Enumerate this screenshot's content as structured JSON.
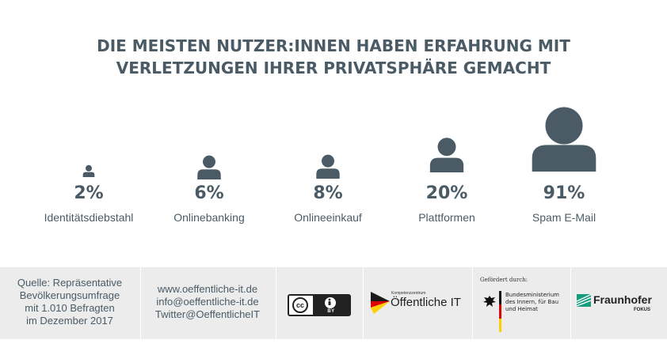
{
  "title": {
    "line1": "DIE MEISTEN NUTZER:INNEN HABEN ERFAHRUNG MIT",
    "line2": "VERLETZUNGEN IHRER PRIVATSPHÄRE GEMACHT"
  },
  "stats": [
    {
      "value": "2%",
      "label": "Identitätsdiebstahl",
      "percent": 2
    },
    {
      "value": "6%",
      "label": "Onlinebanking",
      "percent": 6
    },
    {
      "value": "8%",
      "label": "Onlineeinkauf",
      "percent": 8
    },
    {
      "value": "20%",
      "label": "Plattformen",
      "percent": 20
    },
    {
      "value": "91%",
      "label": "Spam E-Mail",
      "percent": 91
    }
  ],
  "footer": {
    "source": [
      "Quelle: Repräsentative",
      "Bevölkerungsumfrage",
      "mit 1.010 Befragten",
      "im Dezember 2017"
    ],
    "contact": [
      "www.oeffentliche-it.de",
      "info@oeffentliche-it.de",
      "Twitter@OeffentlicheIT"
    ],
    "license": {
      "cc": "cc",
      "by": "BY"
    },
    "kompetenz": {
      "small": "Kompetenzzentrum",
      "big": "Öffentliche IT"
    },
    "funded": {
      "label": "Gefördert durch:",
      "ministry": [
        "Bundesministerium",
        "des Innern, für Bau",
        "und Heimat"
      ]
    },
    "fraunhofer": {
      "name": "Fraunhofer",
      "sub": "FOKUS"
    }
  },
  "colors": {
    "icon": "#4a5b66",
    "footer_bg": "#ececec",
    "fraunhofer": "#179c7d"
  }
}
